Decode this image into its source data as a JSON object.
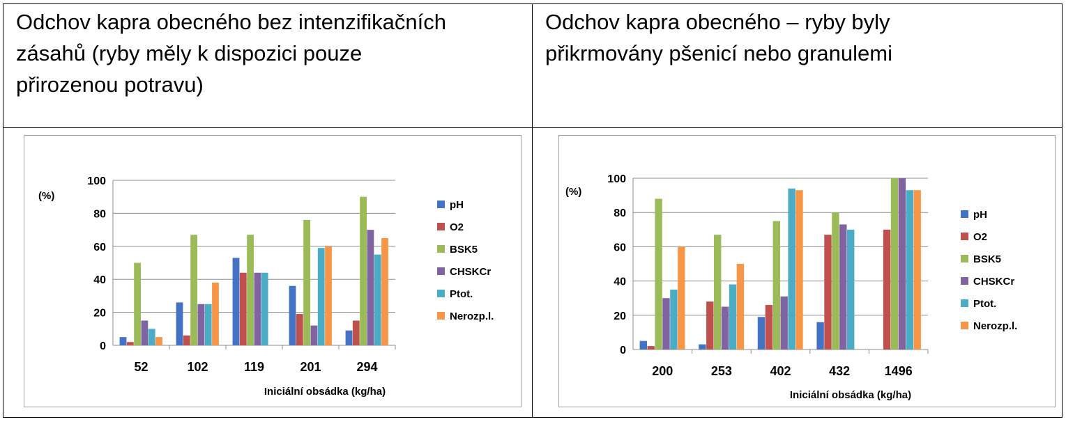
{
  "headers": {
    "left": [
      "Odchov kapra obecného bez intenzifikačních",
      "zásahů (ryby měly k dispozici pouze",
      "přirozenou potravu)"
    ],
    "right": [
      "Odchov kapra obecného – ryby byly",
      "přikrmovány pšenicí nebo granulemi"
    ]
  },
  "colors": {
    "pH": "#4472c4",
    "O2": "#c0504d",
    "BSK5": "#9bbb59",
    "CHSKCr": "#8064a2",
    "Ptot.": "#4bacc6",
    "Nerozp.l.": "#f79646"
  },
  "chart_data": [
    {
      "type": "bar",
      "categories": [
        "52",
        "102",
        "119",
        "201",
        "294"
      ],
      "xlabel": "Iniciální obsádka (kg/ha)",
      "ylabel": "(%)",
      "ylim": [
        0,
        100
      ],
      "yticks": [
        "0",
        "20",
        "40",
        "60",
        "80",
        "100"
      ],
      "grid": true,
      "legend": "right",
      "series": [
        {
          "name": "pH",
          "values": [
            5,
            26,
            53,
            36,
            9
          ]
        },
        {
          "name": "O2",
          "values": [
            2,
            6,
            44,
            19,
            15
          ]
        },
        {
          "name": "BSK5",
          "values": [
            50,
            67,
            67,
            76,
            90
          ]
        },
        {
          "name": "CHSKCr",
          "values": [
            15,
            25,
            44,
            12,
            70
          ]
        },
        {
          "name": "Ptot.",
          "values": [
            10,
            25,
            44,
            59,
            55
          ]
        },
        {
          "name": "Nerozp.l.",
          "values": [
            5,
            38,
            null,
            60,
            65
          ]
        }
      ]
    },
    {
      "type": "bar",
      "categories": [
        "200",
        "253",
        "402",
        "432",
        "1496"
      ],
      "xlabel": "Iniciální obsádka (kg/ha)",
      "ylabel": "(%)",
      "ylim": [
        0,
        100
      ],
      "yticks": [
        "0",
        "20",
        "40",
        "60",
        "80",
        "100"
      ],
      "grid": true,
      "legend": "right",
      "series": [
        {
          "name": "pH",
          "values": [
            5,
            3,
            19,
            16,
            null
          ]
        },
        {
          "name": "O2",
          "values": [
            2,
            28,
            26,
            67,
            70
          ]
        },
        {
          "name": "BSK5",
          "values": [
            88,
            67,
            75,
            80,
            100
          ]
        },
        {
          "name": "CHSKCr",
          "values": [
            30,
            25,
            31,
            73,
            100
          ]
        },
        {
          "name": "Ptot.",
          "values": [
            35,
            38,
            94,
            70,
            93
          ]
        },
        {
          "name": "Nerozp.l.",
          "values": [
            60,
            50,
            93,
            null,
            93
          ]
        }
      ]
    }
  ]
}
